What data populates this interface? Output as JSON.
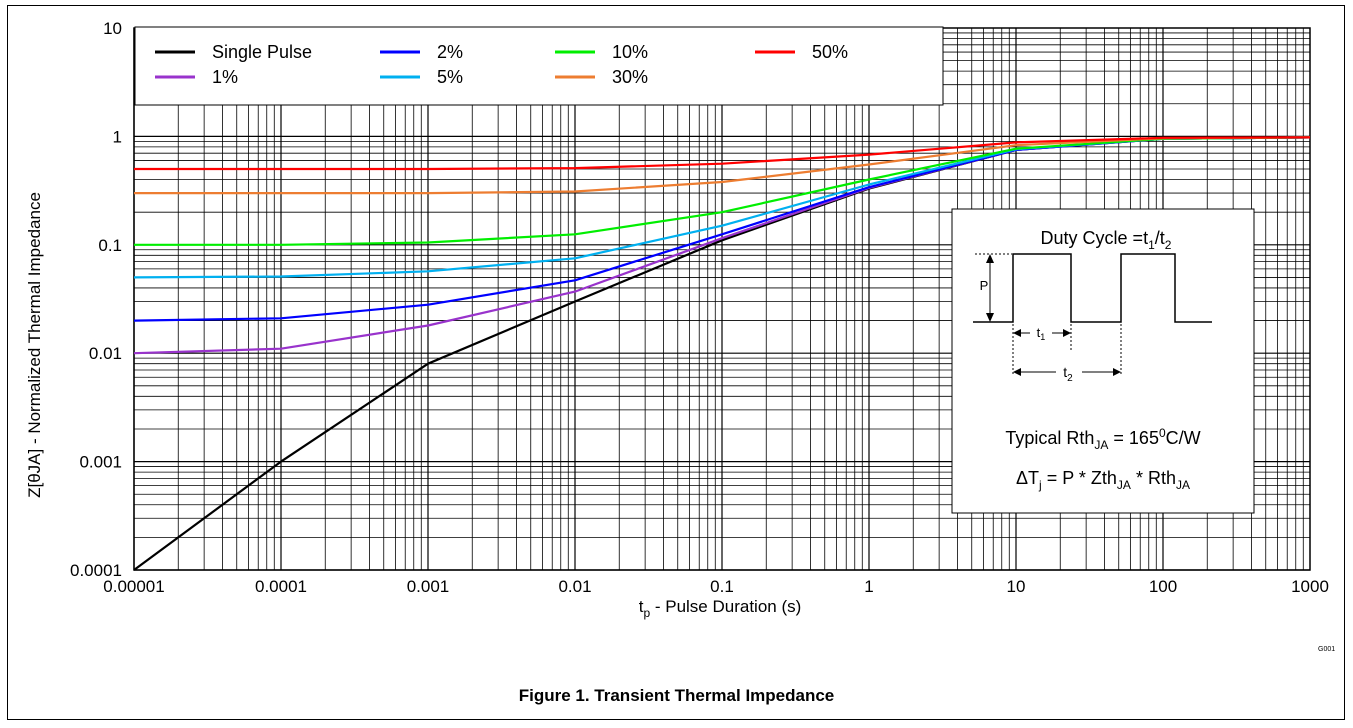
{
  "caption": "Figure 1. Transient Thermal Impedance",
  "watermark": "G001",
  "chart_data": {
    "type": "line",
    "title": "",
    "xlabel": "t_p - Pulse Duration (s)",
    "xlabel_parts": {
      "main": "t",
      "sub": "p",
      "rest": " - Pulse Duration (s)"
    },
    "ylabel": "Z[θJA] - Normalized Thermal Impedance",
    "x_scale": "log",
    "y_scale": "log",
    "xlim": [
      1e-05,
      1000
    ],
    "ylim": [
      0.0001,
      10
    ],
    "x_ticks": [
      {
        "v": 1e-05,
        "label": "0.00001"
      },
      {
        "v": 0.0001,
        "label": "0.0001"
      },
      {
        "v": 0.001,
        "label": "0.001"
      },
      {
        "v": 0.01,
        "label": "0.01"
      },
      {
        "v": 0.1,
        "label": "0.1"
      },
      {
        "v": 1,
        "label": "1"
      },
      {
        "v": 10,
        "label": "10"
      },
      {
        "v": 100,
        "label": "100"
      },
      {
        "v": 1000,
        "label": "1000"
      }
    ],
    "y_ticks": [
      {
        "v": 10,
        "label": "10"
      },
      {
        "v": 1,
        "label": "1"
      },
      {
        "v": 0.1,
        "label": "0.1"
      },
      {
        "v": 0.01,
        "label": "0.01"
      },
      {
        "v": 0.001,
        "label": "0.001"
      },
      {
        "v": 0.0001,
        "label": "0.0001"
      }
    ],
    "grid": true,
    "legend_position": "top-left",
    "series": [
      {
        "name": "Single Pulse",
        "color": "#000000",
        "points": [
          [
            1e-05,
            0.0001
          ],
          [
            0.0001,
            0.001
          ],
          [
            0.001,
            0.008
          ],
          [
            0.01,
            0.03
          ],
          [
            0.1,
            0.11
          ],
          [
            1,
            0.33
          ],
          [
            10,
            0.75
          ],
          [
            100,
            0.95
          ],
          [
            1000,
            0.98
          ]
        ]
      },
      {
        "name": "1%",
        "color": "#9933cc",
        "points": [
          [
            1e-05,
            0.01
          ],
          [
            0.0001,
            0.011
          ],
          [
            0.001,
            0.018
          ],
          [
            0.01,
            0.037
          ],
          [
            0.1,
            0.115
          ],
          [
            1,
            0.335
          ],
          [
            10,
            0.75
          ],
          [
            100,
            0.95
          ],
          [
            1000,
            0.98
          ]
        ]
      },
      {
        "name": "2%",
        "color": "#0000ff",
        "points": [
          [
            1e-05,
            0.02
          ],
          [
            0.0001,
            0.021
          ],
          [
            0.001,
            0.028
          ],
          [
            0.01,
            0.047
          ],
          [
            0.1,
            0.125
          ],
          [
            1,
            0.34
          ],
          [
            10,
            0.75
          ],
          [
            100,
            0.95
          ],
          [
            1000,
            0.98
          ]
        ]
      },
      {
        "name": "5%",
        "color": "#00b0f0",
        "points": [
          [
            1e-05,
            0.05
          ],
          [
            0.0001,
            0.051
          ],
          [
            0.001,
            0.057
          ],
          [
            0.01,
            0.075
          ],
          [
            0.1,
            0.15
          ],
          [
            1,
            0.36
          ],
          [
            10,
            0.76
          ],
          [
            100,
            0.95
          ],
          [
            1000,
            0.98
          ]
        ]
      },
      {
        "name": "10%",
        "color": "#00ee00",
        "points": [
          [
            1e-05,
            0.1
          ],
          [
            0.0001,
            0.1
          ],
          [
            0.001,
            0.105
          ],
          [
            0.01,
            0.125
          ],
          [
            0.1,
            0.2
          ],
          [
            1,
            0.4
          ],
          [
            10,
            0.77
          ],
          [
            100,
            0.95
          ],
          [
            1000,
            0.98
          ]
        ]
      },
      {
        "name": "30%",
        "color": "#ed7d31",
        "points": [
          [
            1e-05,
            0.3
          ],
          [
            0.0001,
            0.3
          ],
          [
            0.001,
            0.3
          ],
          [
            0.01,
            0.31
          ],
          [
            0.1,
            0.38
          ],
          [
            1,
            0.55
          ],
          [
            10,
            0.83
          ],
          [
            100,
            0.96
          ],
          [
            1000,
            0.98
          ]
        ]
      },
      {
        "name": "50%",
        "color": "#ff0000",
        "points": [
          [
            1e-05,
            0.5
          ],
          [
            0.0001,
            0.5
          ],
          [
            0.001,
            0.5
          ],
          [
            0.01,
            0.51
          ],
          [
            0.1,
            0.56
          ],
          [
            1,
            0.68
          ],
          [
            10,
            0.88
          ],
          [
            100,
            0.97
          ],
          [
            1000,
            0.98
          ]
        ]
      }
    ],
    "inset": {
      "duty_cycle": {
        "main": "Duty Cycle =t",
        "sub1": "1",
        "slash": "/t",
        "sub2": "2"
      },
      "p_label": "P",
      "t1_label": {
        "main": "t",
        "sub": "1"
      },
      "t2_label": {
        "main": "t",
        "sub": "2"
      },
      "rth_line": {
        "a": "Typical Rth",
        "sub": "JA",
        "b": " = 165",
        "sup": "0",
        "c": "C/W"
      },
      "dt_line": {
        "a": "ΔT",
        "sub1": "j",
        "b": " = P * Zth",
        "sub2": "JA",
        "c": " * Rth",
        "sub3": "JA"
      }
    }
  }
}
